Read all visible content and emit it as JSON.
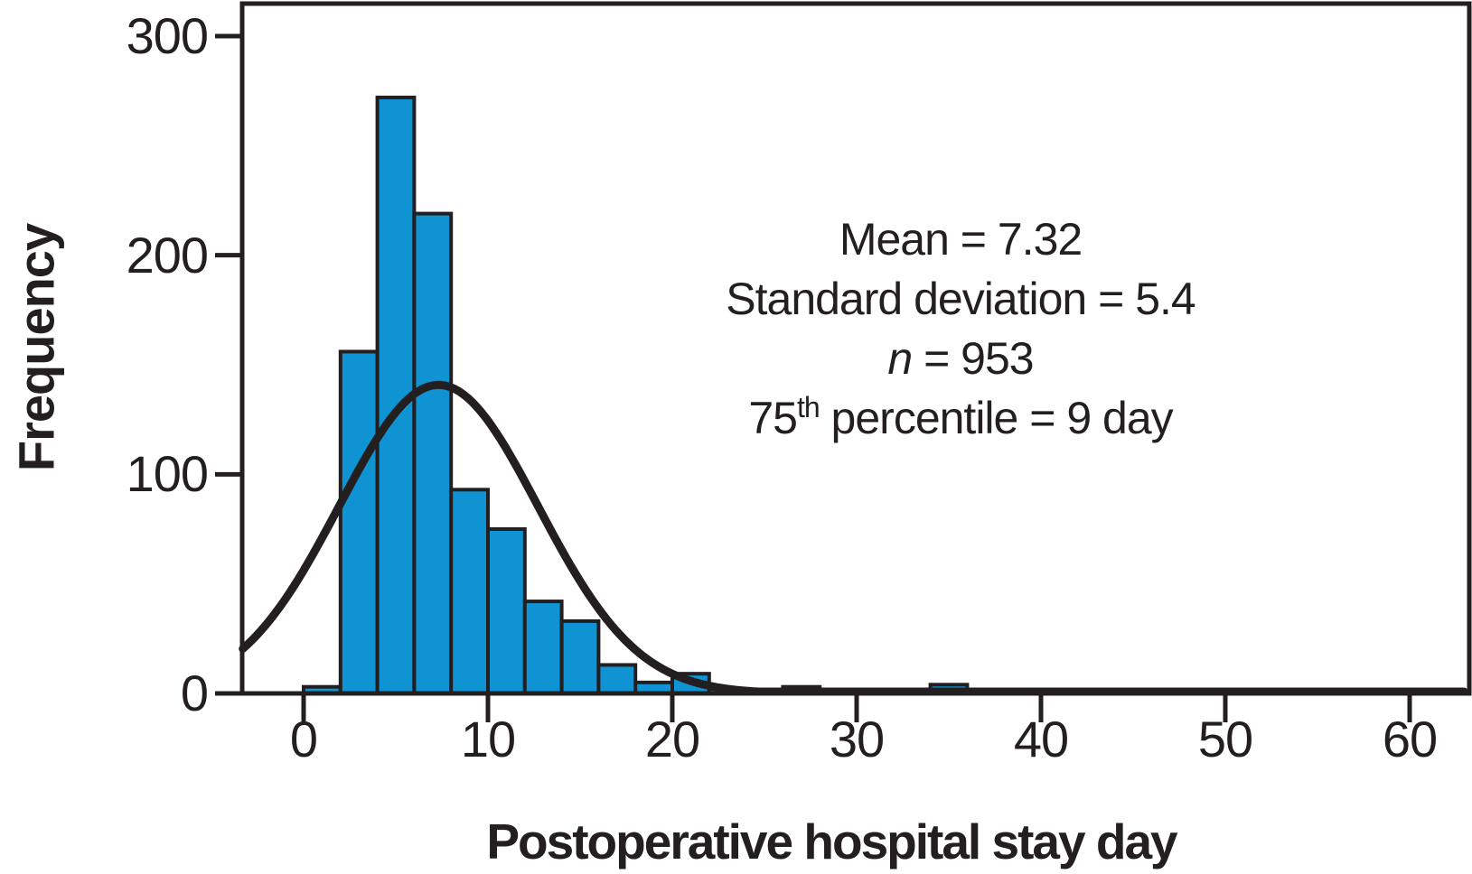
{
  "chart_data": {
    "type": "bar",
    "subtype": "histogram-with-normal-curve",
    "title": "",
    "xlabel": "Postoperative hospital stay day",
    "ylabel": "Frequency",
    "bin_start": 0,
    "bin_width": 2,
    "counts": [
      3,
      156,
      272,
      219,
      93,
      75,
      42,
      33,
      13,
      5,
      9,
      2,
      1,
      3,
      0,
      0,
      0,
      4
    ],
    "bin_labels": [
      "0-2",
      "2-4",
      "4-6",
      "6-8",
      "8-10",
      "10-12",
      "12-14",
      "14-16",
      "16-18",
      "18-20",
      "20-22",
      "22-24",
      "24-26",
      "26-28",
      "28-30",
      "30-32",
      "32-34",
      "34-36"
    ],
    "xticks": [
      0,
      10,
      20,
      30,
      40,
      50,
      60
    ],
    "yticks": [
      0,
      100,
      200,
      300
    ],
    "xlim": [
      -3.3,
      63.2
    ],
    "ylim": [
      0,
      315
    ],
    "grid": false,
    "legend": "none",
    "normal_curve": {
      "mean": 7.32,
      "sd": 5.4,
      "n": 953,
      "peak_frequency": 140.8
    },
    "colors": {
      "bar_fill": "#0F93D2",
      "line": "#231F20",
      "background": "#FFFFFF"
    }
  },
  "annotation": {
    "mean": "Mean = 7.32",
    "sd": "Standard deviation = 5.4",
    "n_var": "n",
    "n_rest": " = 953",
    "p_base": "75",
    "p_sup": "th",
    "p_rest": " percentile = 9 day"
  }
}
